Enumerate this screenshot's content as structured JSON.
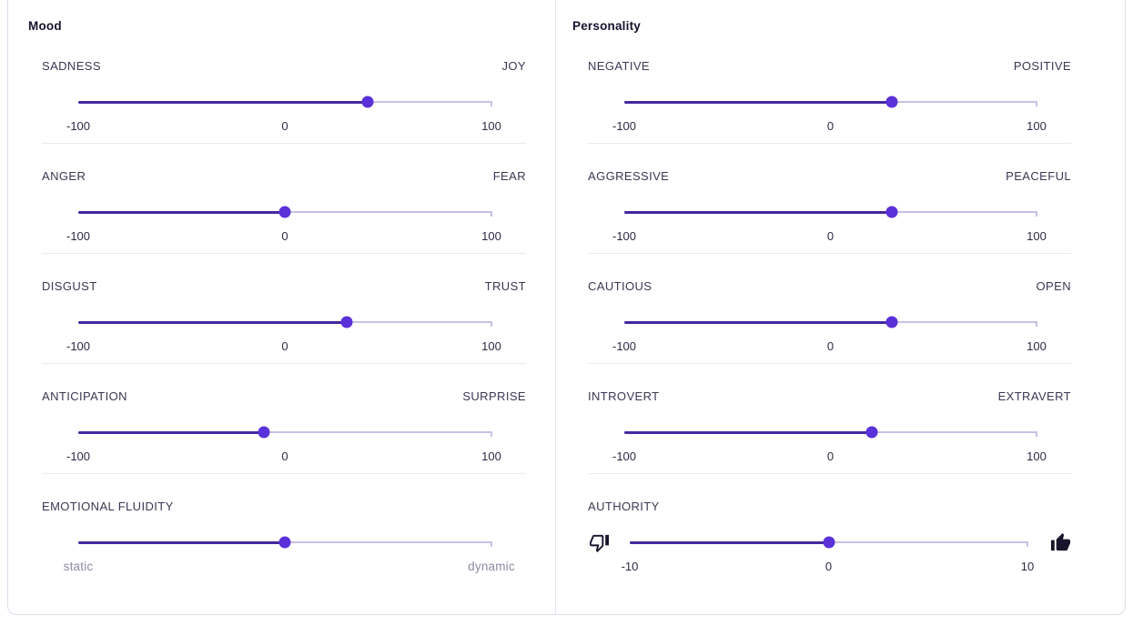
{
  "panels": [
    {
      "title": "Mood",
      "sliders": [
        {
          "id": "sadness-joy",
          "left_label": "SADNESS",
          "right_label": "JOY",
          "min": -100,
          "max": 100,
          "value": 40,
          "ticks": [
            "-100",
            "0",
            "100"
          ]
        },
        {
          "id": "anger-fear",
          "left_label": "ANGER",
          "right_label": "FEAR",
          "min": -100,
          "max": 100,
          "value": 0,
          "ticks": [
            "-100",
            "0",
            "100"
          ]
        },
        {
          "id": "disgust-trust",
          "left_label": "DISGUST",
          "right_label": "TRUST",
          "min": -100,
          "max": 100,
          "value": 30,
          "ticks": [
            "-100",
            "0",
            "100"
          ]
        },
        {
          "id": "anticipation-surprise",
          "left_label": "ANTICIPATION",
          "right_label": "SURPRISE",
          "min": -100,
          "max": 100,
          "value": -10,
          "ticks": [
            "-100",
            "0",
            "100"
          ]
        },
        {
          "id": "emotional-fluidity",
          "left_label": "EMOTIONAL FLUIDITY",
          "right_label": "",
          "min": -100,
          "max": 100,
          "value": 0,
          "end_labels": [
            "static",
            "dynamic"
          ]
        }
      ]
    },
    {
      "title": "Personality",
      "sliders": [
        {
          "id": "negative-positive",
          "left_label": "NEGATIVE",
          "right_label": "POSITIVE",
          "min": -100,
          "max": 100,
          "value": 30,
          "ticks": [
            "-100",
            "0",
            "100"
          ]
        },
        {
          "id": "aggressive-peaceful",
          "left_label": "AGGRESSIVE",
          "right_label": "PEACEFUL",
          "min": -100,
          "max": 100,
          "value": 30,
          "ticks": [
            "-100",
            "0",
            "100"
          ]
        },
        {
          "id": "cautious-open",
          "left_label": "CAUTIOUS",
          "right_label": "OPEN",
          "min": -100,
          "max": 100,
          "value": 30,
          "ticks": [
            "-100",
            "0",
            "100"
          ]
        },
        {
          "id": "introvert-extravert",
          "left_label": "INTROVERT",
          "right_label": "EXTRAVERT",
          "min": -100,
          "max": 100,
          "value": 20,
          "ticks": [
            "-100",
            "0",
            "100"
          ]
        },
        {
          "id": "authority",
          "left_label": "AUTHORITY",
          "right_label": "",
          "min": -10,
          "max": 10,
          "value": 0,
          "ticks": [
            "-10",
            "0",
            "10"
          ],
          "icons": [
            "thumbs-down",
            "thumbs-up"
          ]
        }
      ]
    }
  ],
  "colors": {
    "track_filled": "#44289f",
    "track_empty": "#c9bfe8",
    "handle": "#5a31d8",
    "icon": "#17142b"
  }
}
